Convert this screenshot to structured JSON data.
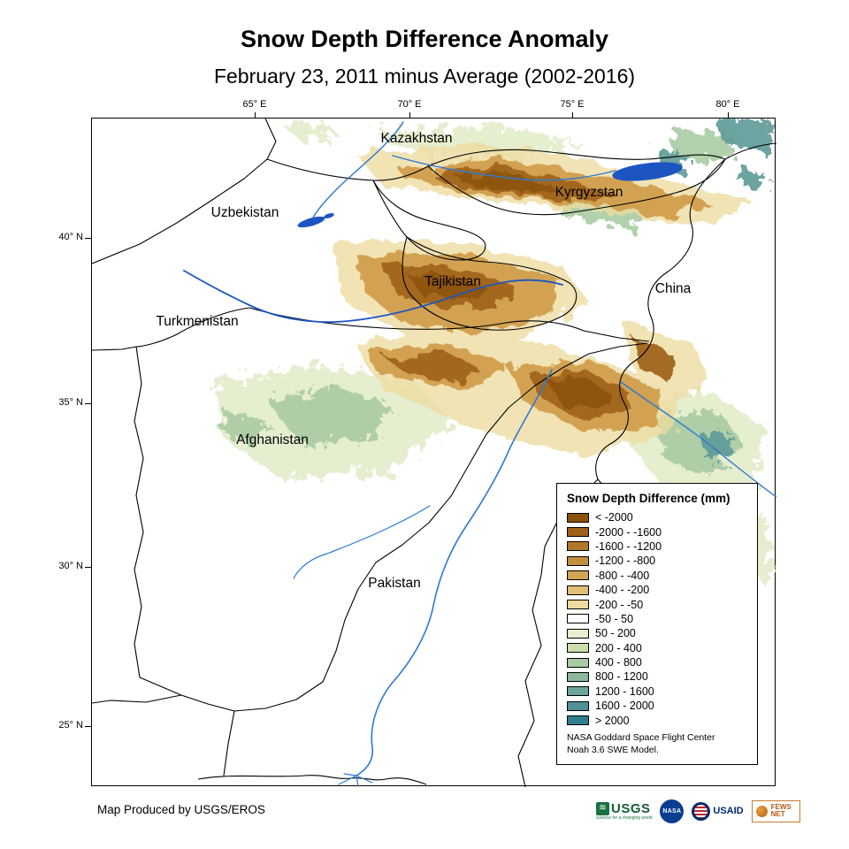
{
  "title": "Snow Depth Difference Anomaly",
  "subtitle": "February 23, 2011 minus Average (2002-2016)",
  "map": {
    "lon_ticks": [
      "65° E",
      "70° E",
      "75° E",
      "80° E"
    ],
    "lat_ticks": [
      "40° N",
      "35° N",
      "30° N",
      "25° N"
    ],
    "countries": [
      "Kazakhstan",
      "Kyrgyzstan",
      "Uzbekistan",
      "Tajikistan",
      "Turkmenistan",
      "China",
      "Afghanistan",
      "Pakistan"
    ]
  },
  "legend": {
    "title": "Snow Depth Difference (mm)",
    "entries": [
      {
        "label": "< -2000",
        "color": "#8c510a"
      },
      {
        "label": "-2000 - -1600",
        "color": "#9d6118"
      },
      {
        "label": "-1600 - -1200",
        "color": "#b07828"
      },
      {
        "label": "-1200 - -800",
        "color": "#c28f3c"
      },
      {
        "label": "-800 - -400",
        "color": "#d2a556"
      },
      {
        "label": "-400 - -200",
        "color": "#e0bf77"
      },
      {
        "label": "-200 - -50",
        "color": "#eedb9f"
      },
      {
        "label": "-50 - 50",
        "color": "#ffffff"
      },
      {
        "label": "50 - 200",
        "color": "#e7efd1"
      },
      {
        "label": "200 - 400",
        "color": "#cbdfae"
      },
      {
        "label": "400 - 800",
        "color": "#a9cba4"
      },
      {
        "label": "800 - 1200",
        "color": "#8bb89f"
      },
      {
        "label": "1200 - 1600",
        "color": "#6ca59c"
      },
      {
        "label": "1600 - 2000",
        "color": "#4f9097"
      },
      {
        "label": "> 2000",
        "color": "#2d7f8e"
      }
    ],
    "note_line1": "NASA Goddard Space Flight Center",
    "note_line2": "Noah 3.6 SWE Model."
  },
  "footer": {
    "credit": "Map Produced by USGS/EROS",
    "logos": {
      "usgs": {
        "label": "USGS",
        "tagline": "science for a changing world"
      },
      "nasa": {
        "label": "NASA"
      },
      "usaid": {
        "label": "USAID"
      },
      "fewsnet": {
        "label": "FEWS NET"
      }
    }
  }
}
